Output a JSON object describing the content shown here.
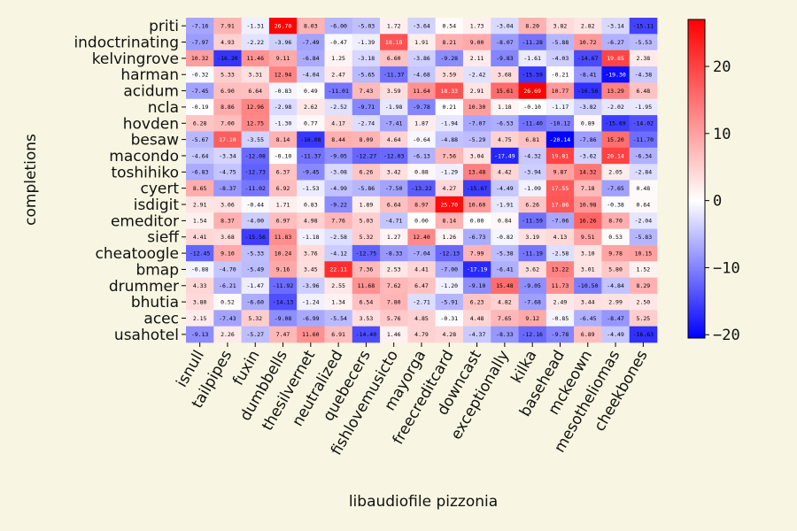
{
  "chart_data": {
    "type": "heatmap",
    "xlabel": "libaudiofile pizzonia",
    "ylabel": "completions",
    "rows": [
      "priti",
      "indoctrinating",
      "kelvingrove",
      "harman",
      "acidum",
      "ncla",
      "hovden",
      "besaw",
      "macondo",
      "toshihiko",
      "cyert",
      "isdigit",
      "emeditor",
      "sieff",
      "cheatoogle",
      "bmap",
      "drummer",
      "bhutia",
      "acec",
      "usahotel"
    ],
    "cols": [
      "isnull",
      "tailpipes",
      "fuxin",
      "dumbbells",
      "thesilvernet",
      "neutralized",
      "quebecers",
      "fishlovemusicto",
      "mayorga",
      "freecreditcard",
      "downcast",
      "exceptionally",
      "kilka",
      "basehead",
      "mckeown",
      "mesotheliomas",
      "cheekbones"
    ],
    "values": [
      [
        -7.16,
        7.91,
        -1.31,
        26.7,
        8.03,
        -6.0,
        -5.03,
        1.72,
        -3.64,
        0.54,
        1.73,
        -3.04,
        8.2,
        3.82,
        2.82,
        -3.14,
        -15.11
      ],
      [
        -7.97,
        4.93,
        -2.22,
        -3.96,
        -7.49,
        -0.47,
        -1.39,
        18.18,
        1.91,
        8.21,
        9.0,
        -8.07,
        -11.28,
        -5.88,
        10.72,
        -6.27,
        -5.53
      ],
      [
        10.32,
        -16.2,
        11.46,
        9.11,
        -6.84,
        1.25,
        -3.18,
        6.6,
        -3.86,
        -9.28,
        2.11,
        -9.83,
        -1.61,
        -4.03,
        -14.67,
        19.85,
        2.38
      ],
      [
        -0.32,
        5.33,
        3.31,
        12.94,
        -4.04,
        2.47,
        -5.65,
        -11.37,
        -4.68,
        3.59,
        -2.42,
        3.68,
        -15.59,
        -0.21,
        -8.41,
        -19.3,
        -4.38
      ],
      [
        -7.45,
        6.9,
        6.64,
        -0.83,
        0.49,
        -11.01,
        7.43,
        3.59,
        11.64,
        18.33,
        2.91,
        15.61,
        26.69,
        10.77,
        -16.56,
        13.29,
        6.48
      ],
      [
        -0.19,
        8.86,
        12.96,
        -2.98,
        2.62,
        -2.52,
        -9.71,
        -1.98,
        -9.78,
        0.21,
        10.3,
        1.18,
        -0.1,
        -1.17,
        -3.82,
        -2.02,
        -1.95
      ],
      [
        6.28,
        7.0,
        12.75,
        -1.3,
        0.77,
        4.17,
        -2.74,
        -7.41,
        1.87,
        -1.94,
        -7.07,
        -6.53,
        -11.4,
        -10.12,
        0.89,
        -15.69,
        -14.02
      ],
      [
        -5.67,
        17.1,
        -3.55,
        8.14,
        -16.08,
        8.44,
        8.09,
        4.64,
        -0.64,
        -4.88,
        -5.29,
        4.75,
        6.81,
        -20.14,
        -7.86,
        15.2,
        -11.7
      ],
      [
        -4.64,
        -3.34,
        -12.08,
        -0.1,
        -11.37,
        -9.05,
        -12.27,
        -12.03,
        -6.13,
        7.56,
        3.04,
        -17.49,
        -4.32,
        19.81,
        -3.62,
        20.14,
        -6.34
      ],
      [
        -6.83,
        -4.75,
        -12.73,
        6.37,
        -9.45,
        -3.08,
        6.26,
        3.42,
        0.88,
        -1.29,
        13.48,
        4.42,
        -3.94,
        9.87,
        14.32,
        2.05,
        -2.84
      ],
      [
        8.65,
        -8.37,
        -11.02,
        6.92,
        -1.53,
        -4.99,
        -5.86,
        -7.5,
        -13.22,
        4.27,
        -15.67,
        -4.49,
        -1.09,
        17.55,
        7.18,
        -7.65,
        0.48
      ],
      [
        2.91,
        3.06,
        -0.44,
        1.71,
        0.83,
        -9.22,
        1.89,
        6.64,
        8.97,
        25.7,
        10.6,
        -1.91,
        6.26,
        17.86,
        10.98,
        -0.38,
        0.64
      ],
      [
        1.54,
        8.37,
        -4.0,
        6.97,
        4.98,
        7.76,
        5.03,
        -4.71,
        0.0,
        8.14,
        0.0,
        0.84,
        -11.59,
        -7.06,
        16.26,
        8.7,
        -2.04
      ],
      [
        4.41,
        3.68,
        -15.56,
        11.83,
        -1.18,
        -2.58,
        5.32,
        1.27,
        12.4,
        1.26,
        -6.73,
        -0.82,
        3.19,
        4.13,
        9.51,
        0.53,
        -5.83
      ],
      [
        -12.45,
        9.1,
        -5.33,
        10.24,
        3.76,
        -4.12,
        -12.75,
        -8.33,
        -7.04,
        -12.13,
        7.99,
        -5.38,
        -11.19,
        -2.58,
        3.1,
        9.78,
        10.15
      ],
      [
        -0.88,
        -4.7,
        -5.49,
        9.16,
        3.45,
        22.11,
        7.36,
        2.53,
        4.41,
        -7.0,
        -17.19,
        -6.41,
        3.62,
        13.22,
        3.01,
        5.8,
        1.52
      ],
      [
        4.33,
        -6.21,
        -1.47,
        -11.92,
        -3.96,
        2.55,
        11.68,
        7.62,
        6.47,
        -1.2,
        -9.1,
        15.48,
        -9.05,
        11.73,
        -10.5,
        -4.84,
        8.29
      ],
      [
        3.8,
        0.52,
        -6.6,
        -14.13,
        -1.24,
        1.34,
        6.54,
        7.8,
        -2.71,
        -5.91,
        6.23,
        4.82,
        -7.68,
        2.49,
        3.44,
        2.99,
        2.5
      ],
      [
        2.15,
        -7.43,
        5.32,
        -9.08,
        -6.99,
        -5.54,
        3.53,
        5.76,
        4.85,
        -0.31,
        4.48,
        7.65,
        9.12,
        -0.85,
        -6.45,
        -8.47,
        5.25
      ],
      [
        -9.13,
        2.26,
        -5.27,
        7.47,
        11.6,
        6.91,
        -14.4,
        1.46,
        4.79,
        4.28,
        -4.37,
        -8.33,
        -12.16,
        -9.78,
        6.89,
        -4.49,
        -16.63
      ]
    ],
    "vmin": -20.5,
    "vmax": 27,
    "colormap": [
      "#0000ff",
      "#ffffff",
      "#ff0000"
    ],
    "colorbar_ticks": [
      -20,
      -10,
      0,
      10,
      20
    ],
    "grid": false
  }
}
